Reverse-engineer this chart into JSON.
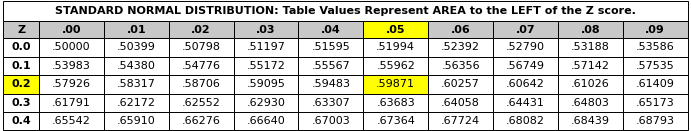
{
  "title": "STANDARD NORMAL DISTRIBUTION: Table Values Represent AREA to the LEFT of the Z score.",
  "col_headers": [
    "Z",
    ".00",
    ".01",
    ".02",
    ".03",
    ".04",
    ".05",
    ".06",
    ".07",
    ".08",
    ".09"
  ],
  "rows": [
    [
      "0.0",
      ".50000",
      ".50399",
      ".50798",
      ".51197",
      ".51595",
      ".51994",
      ".52392",
      ".52790",
      ".53188",
      ".53586"
    ],
    [
      "0.1",
      ".53983",
      ".54380",
      ".54776",
      ".55172",
      ".55567",
      ".55962",
      ".56356",
      ".56749",
      ".57142",
      ".57535"
    ],
    [
      "0.2",
      ".57926",
      ".58317",
      ".58706",
      ".59095",
      ".59483",
      ".59871",
      ".60257",
      ".60642",
      ".61026",
      ".61409"
    ],
    [
      "0.3",
      ".61791",
      ".62172",
      ".62552",
      ".62930",
      ".63307",
      ".63683",
      ".64058",
      ".64431",
      ".64803",
      ".65173"
    ],
    [
      "0.4",
      ".65542",
      ".65910",
      ".66276",
      ".66640",
      ".67003",
      ".67364",
      ".67724",
      ".68082",
      ".68439",
      ".68793"
    ]
  ],
  "highlight_col_idx": 6,
  "highlight_row_idx": 4,
  "highlight_color": "#FFFF00",
  "header_bg": "#C8C8C8",
  "white": "#FFFFFF",
  "border_color": "#000000",
  "title_fontsize": 8.0,
  "data_fontsize": 8.0,
  "fig_width": 6.91,
  "fig_height": 1.31,
  "dpi": 100
}
